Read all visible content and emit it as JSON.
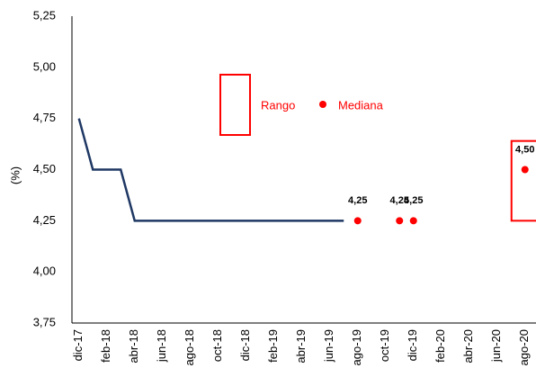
{
  "chart_data": {
    "type": "line",
    "y_label": "(%)",
    "categories": [
      "dic-17",
      null,
      "feb-18",
      null,
      "abr-18",
      null,
      "jun-18",
      null,
      "ago-18",
      null,
      "oct-18",
      null,
      "dic-18",
      null,
      "feb-19",
      null,
      "abr-19",
      null,
      "jun-19",
      null,
      "ago-19",
      null,
      "oct-19",
      null,
      "dic-19",
      null,
      "feb-20",
      null,
      "abr-20",
      null,
      "jun-20",
      null,
      "ago-20"
    ],
    "series": [
      {
        "color": "#1f3864",
        "values": [
          4.75,
          4.5,
          4.5,
          4.5,
          4.25,
          4.25,
          4.25,
          4.25,
          4.25,
          4.25,
          4.25,
          4.25,
          4.25,
          4.25,
          4.25,
          4.25,
          4.25,
          4.25,
          4.25,
          4.25,
          null,
          null,
          null,
          null,
          null,
          null,
          null,
          null,
          null,
          null,
          null,
          null,
          null
        ]
      },
      {
        "name": "Mediana",
        "color": "#ff0000",
        "values": [
          null,
          null,
          null,
          null,
          null,
          null,
          null,
          null,
          null,
          null,
          null,
          null,
          null,
          null,
          null,
          null,
          null,
          null,
          null,
          null,
          4.25,
          null,
          null,
          4.25,
          4.25,
          null,
          null,
          null,
          null,
          null,
          null,
          null,
          4.5
        ],
        "value_labels": [
          null,
          null,
          null,
          null,
          null,
          null,
          null,
          null,
          null,
          null,
          null,
          null,
          null,
          null,
          null,
          null,
          null,
          null,
          null,
          null,
          "4,25",
          null,
          null,
          "4,25",
          "4,25",
          null,
          null,
          null,
          null,
          null,
          null,
          null,
          "4,50"
        ]
      }
    ],
    "range": {
      "name": "Rango",
      "color": "#ff0000",
      "low": [
        null,
        null,
        null,
        null,
        null,
        null,
        null,
        null,
        null,
        null,
        null,
        null,
        null,
        null,
        null,
        null,
        null,
        null,
        null,
        null,
        null,
        null,
        null,
        null,
        null,
        null,
        null,
        null,
        null,
        null,
        null,
        null,
        4.25
      ],
      "high": [
        null,
        null,
        null,
        null,
        null,
        null,
        null,
        null,
        null,
        null,
        null,
        null,
        null,
        null,
        null,
        null,
        null,
        null,
        null,
        null,
        null,
        null,
        null,
        null,
        null,
        null,
        null,
        null,
        null,
        null,
        null,
        null,
        4.64
      ]
    },
    "ylim": [
      3.75,
      5.25
    ],
    "yticks": [
      {
        "value": 3.75,
        "label": "3,75"
      },
      {
        "value": 4.0,
        "label": "4,00"
      },
      {
        "value": 4.25,
        "label": "4,25"
      },
      {
        "value": 4.5,
        "label": "4,50"
      },
      {
        "value": 4.75,
        "label": "4,75"
      },
      {
        "value": 5.0,
        "label": "5,00"
      },
      {
        "value": 5.25,
        "label": "5,25"
      }
    ],
    "grid": false
  }
}
